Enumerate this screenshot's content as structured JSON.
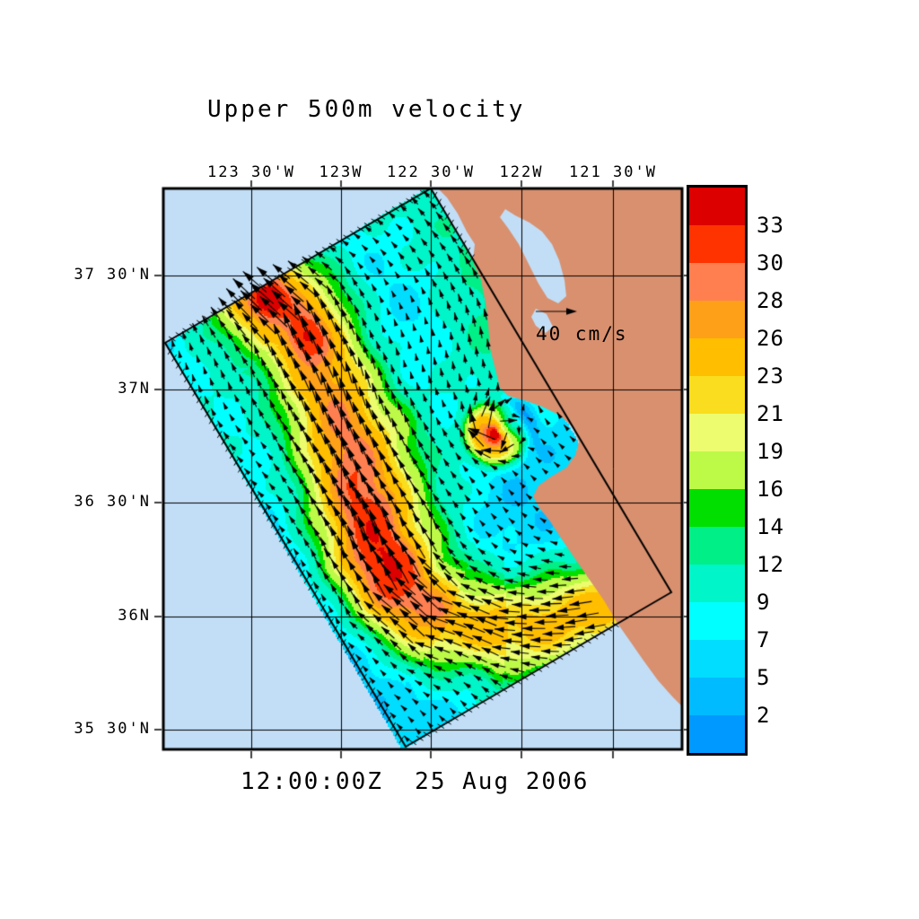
{
  "title": "Upper 500m velocity",
  "timestamp": "12:00:00Z  25 Aug 2006",
  "reference_vector": {
    "label": "40 cm/s",
    "speed_cm_s": 40
  },
  "axes": {
    "top_longitude_labels": [
      "123 30'W",
      "123W",
      "122 30'W",
      "122W",
      "121 30'W"
    ],
    "left_latitude_labels": [
      "37 30'N",
      "37N",
      "36 30'N",
      "36N",
      "35 30'N"
    ]
  },
  "colorbar": {
    "tick_labels": [
      "33",
      "30",
      "28",
      "26",
      "23",
      "21",
      "19",
      "16",
      "14",
      "12",
      "9",
      "7",
      "5",
      "2"
    ],
    "band_colors_top_to_bottom": [
      "#DD0000",
      "#FF3300",
      "#FF7F50",
      "#FFA019",
      "#FFBE00",
      "#FADD1E",
      "#EDFC6E",
      "#BDF947",
      "#00DF00",
      "#00EF87",
      "#00F5C8",
      "#00FFFF",
      "#00DDFF",
      "#00BBFF",
      "#0099FF"
    ]
  },
  "map_colors": {
    "ocean": "#C2DEF6",
    "land": "#D9906F",
    "grid": "#000000",
    "domain_outline": "#000000",
    "arrows": "#000000",
    "frame": "#000000"
  },
  "chart_data": {
    "type": "heatmap",
    "subtype": "ocean-current-speed-map-with-vector-arrows",
    "title": "Upper 500m velocity",
    "valid_time": "12:00:00Z  25 Aug 2006",
    "speed_units": "cm/s",
    "reference_vector_cm_s": 40,
    "x_tick_labels": [
      "123 30'W",
      "123W",
      "122 30'W",
      "122W",
      "121 30'W"
    ],
    "y_tick_labels": [
      "37 30'N",
      "37N",
      "36 30'N",
      "36N",
      "35 30'N"
    ],
    "colorbar_tick_values": [
      33,
      30,
      28,
      26,
      23,
      21,
      19,
      16,
      14,
      12,
      9,
      7,
      5,
      2
    ],
    "colorbar_band_colors_top_to_bottom": [
      "#DD0000",
      "#FF3300",
      "#FF7F50",
      "#FFA019",
      "#FFBE00",
      "#FADD1E",
      "#EDFC6E",
      "#BDF947",
      "#00DF00",
      "#00EF87",
      "#00F5C8",
      "#00FFFF",
      "#00DDFF",
      "#00BBFF",
      "#0099FF"
    ],
    "legend_position": "right",
    "grid": true,
    "depicted_features": [
      "Rotated rectangular model domain outlined in black over the central California coastal ocean",
      "Speed shown as filled color field inside the domain, quantized to the 15 colorbar bands",
      "Poleward alongshore jet hugging the coast with core speeds about 23-33 cm/s; red maxima near the northwest exit of the domain",
      "Small intense eddy offshore of Monterey Bay with red core about 30-33 cm/s surrounded by a green-yellow ring",
      "Background flow mostly 2-12 cm/s (blue and cyan shades) with weak blue minima in the southwest of the domain",
      "Black velocity arrows on the model grid, length proportional to speed (40 cm/s reference arrow shown over land)",
      "Land drawn in tan with San Francisco Bay and Monterey Bay coastline; thin black lat/lon graticule every 30 minutes"
    ]
  }
}
